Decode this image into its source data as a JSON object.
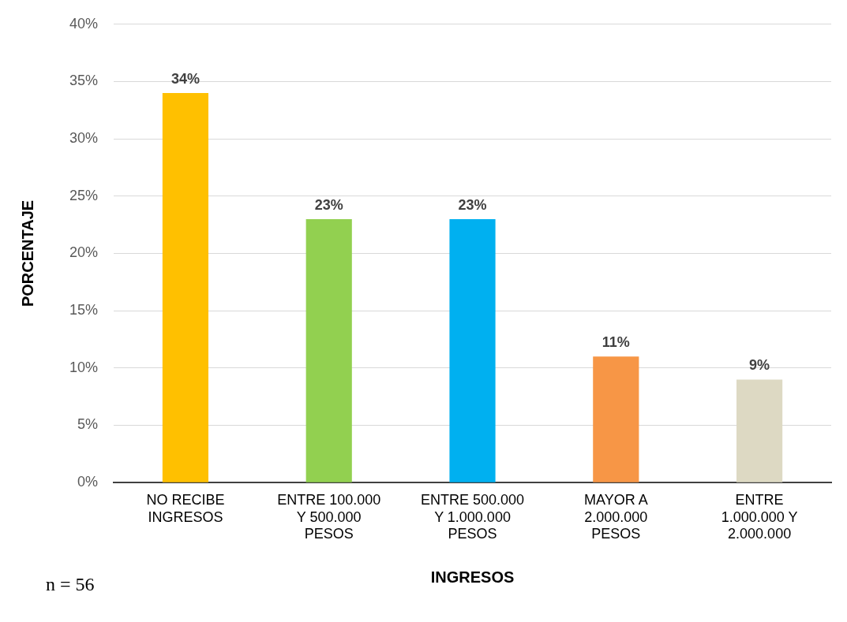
{
  "chart_data": {
    "type": "bar",
    "categories": [
      "NO RECIBE INGRESOS",
      "ENTRE 100.000 Y 500.000 PESOS",
      "ENTRE 500.000 Y 1.000.000 PESOS",
      "MAYOR A 2.000.000 PESOS",
      "ENTRE 1.000.000 Y 2.000.000"
    ],
    "values": [
      34,
      23,
      23,
      11,
      9
    ],
    "colors": [
      "#ffc000",
      "#92d050",
      "#00b0f0",
      "#f79646",
      "#ddd9c3"
    ],
    "value_labels": [
      "34%",
      "23%",
      "23%",
      "11%",
      "9%"
    ],
    "xlabel": "INGRESOS",
    "ylabel": "PORCENTAJE",
    "ylim": [
      0,
      40
    ],
    "yticks": [
      {
        "value": 0,
        "label": "0%"
      },
      {
        "value": 5,
        "label": "5%"
      },
      {
        "value": 10,
        "label": "10%"
      },
      {
        "value": 15,
        "label": "15%"
      },
      {
        "value": 20,
        "label": "20%"
      },
      {
        "value": 25,
        "label": "25%"
      },
      {
        "value": 30,
        "label": "30%"
      },
      {
        "value": 35,
        "label": "35%"
      },
      {
        "value": 40,
        "label": "40%"
      }
    ],
    "grid": "y",
    "legend": false,
    "annotations": [
      "n = 56"
    ]
  }
}
